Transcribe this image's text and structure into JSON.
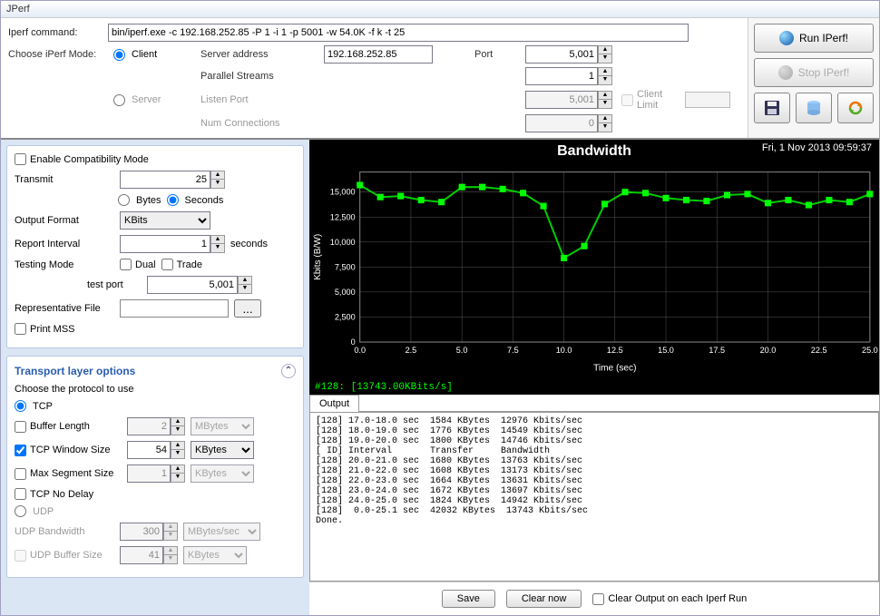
{
  "window": {
    "title": "JPerf"
  },
  "cmd": {
    "label": "Iperf command:",
    "value": "bin/iperf.exe -c 192.168.252.85 -P 1 -i 1 -p 5001 -w 54.0K -f k -t 25"
  },
  "mode": {
    "label": "Choose iPerf Mode:",
    "client_label": "Client",
    "server_label": "Server",
    "selected": "client",
    "server_address_label": "Server address",
    "server_address": "192.168.252.85",
    "port_label": "Port",
    "port": "5,001",
    "parallel_label": "Parallel Streams",
    "parallel": "1",
    "listen_port_label": "Listen Port",
    "listen_port": "5,001",
    "client_limit_label": "Client Limit",
    "num_conn_label": "Num Connections",
    "num_conn": "0"
  },
  "buttons": {
    "run": "Run IPerf!",
    "stop": "Stop IPerf!",
    "save": "Save",
    "clear": "Clear now",
    "clear_on_run": "Clear Output on each Iperf Run"
  },
  "app_opts": {
    "compat": "Enable Compatibility Mode",
    "transmit_label": "Transmit",
    "transmit": "25",
    "bytes": "Bytes",
    "seconds": "Seconds",
    "unit_sel": "seconds",
    "output_format_label": "Output Format",
    "output_format": "KBits",
    "report_interval_label": "Report Interval",
    "report_interval": "1",
    "report_unit": "seconds",
    "testing_mode_label": "Testing Mode",
    "dual": "Dual",
    "trade": "Trade",
    "test_port_label": "test port",
    "test_port": "5,001",
    "rep_file_label": "Representative File",
    "print_mss": "Print MSS"
  },
  "transport": {
    "title": "Transport layer options",
    "choose": "Choose the protocol to use",
    "tcp": "TCP",
    "udp": "UDP",
    "buffer_len": "Buffer Length",
    "buffer_len_v": "2",
    "buffer_len_u": "MBytes",
    "tcp_win": "TCP Window Size",
    "tcp_win_v": "54",
    "tcp_win_u": "KBytes",
    "max_seg": "Max Segment Size",
    "max_seg_v": "1",
    "max_seg_u": "KBytes",
    "nodelay": "TCP No Delay",
    "udp_bw": "UDP Bandwidth",
    "udp_bw_v": "300",
    "udp_bw_u": "MBytes/sec",
    "udp_buf": "UDP Buffer Size",
    "udp_buf_v": "41",
    "udp_buf_u": "KBytes"
  },
  "chart": {
    "title": "Bandwidth",
    "date": "Fri, 1 Nov 2013 09:59:37",
    "x_label": "Time (sec)",
    "y_label": "Kbits (B/W)",
    "status": "#128: [13743.00KBits/s]",
    "type": "line",
    "line_color": "#00cc00",
    "marker_color": "#00ff00",
    "marker_shape": "square",
    "marker_size": 7,
    "line_width": 2,
    "background_color": "#000000",
    "grid_color": "#555555",
    "text_color": "#ffffff",
    "xlim": [
      0,
      25
    ],
    "ylim": [
      0,
      17000
    ],
    "xtick_step": 2.5,
    "yticks": [
      0,
      2500,
      5000,
      7500,
      10000,
      12500,
      15000
    ],
    "ytick_labels": [
      "0",
      "2,500",
      "5,000",
      "7,500",
      "10,000",
      "12,500",
      "15,000"
    ],
    "x": [
      0,
      1,
      2,
      3,
      4,
      5,
      6,
      7,
      8,
      9,
      10,
      11,
      12,
      13,
      14,
      15,
      16,
      17,
      18,
      19,
      20,
      21,
      22,
      23,
      24,
      25
    ],
    "y": [
      15700,
      14500,
      14600,
      14200,
      14000,
      15500,
      15500,
      15300,
      14900,
      13600,
      8400,
      9600,
      13800,
      15000,
      14900,
      14400,
      14200,
      14100,
      14700,
      14800,
      13900,
      14200,
      13700,
      14200,
      14000,
      14800
    ]
  },
  "output": {
    "tab": "Output",
    "lines": [
      "[128] 17.0-18.0 sec  1584 KBytes  12976 Kbits/sec",
      "[128] 18.0-19.0 sec  1776 KBytes  14549 Kbits/sec",
      "[128] 19.0-20.0 sec  1800 KBytes  14746 Kbits/sec",
      "[ ID] Interval       Transfer     Bandwidth",
      "[128] 20.0-21.0 sec  1680 KBytes  13763 Kbits/sec",
      "[128] 21.0-22.0 sec  1608 KBytes  13173 Kbits/sec",
      "[128] 22.0-23.0 sec  1664 KBytes  13631 Kbits/sec",
      "[128] 23.0-24.0 sec  1672 KBytes  13697 Kbits/sec",
      "[128] 24.0-25.0 sec  1824 KBytes  14942 Kbits/sec",
      "[128]  0.0-25.1 sec  42032 KBytes  13743 Kbits/sec",
      "Done."
    ]
  }
}
